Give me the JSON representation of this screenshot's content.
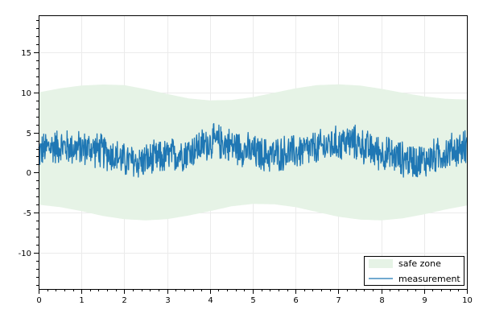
{
  "chart_data": {
    "type": "line",
    "title": "",
    "xlabel": "",
    "ylabel": "",
    "xlim": [
      0,
      10
    ],
    "ylim": [
      -14.5,
      19.5
    ],
    "x_ticks": [
      0,
      1,
      2,
      3,
      4,
      5,
      6,
      7,
      8,
      9,
      10
    ],
    "y_ticks": [
      -10,
      -5,
      0,
      5,
      10,
      15
    ],
    "grid": true,
    "legend_position": "bottom-right",
    "band": {
      "name": "safe zone",
      "color": "#e6f3e6",
      "upper": {
        "x": [
          0,
          0.5,
          1,
          1.5,
          2,
          2.5,
          3,
          3.5,
          4,
          4.5,
          5,
          5.5,
          6,
          6.5,
          7,
          7.5,
          8,
          8.5,
          9,
          9.5,
          10
        ],
        "y": [
          10.0,
          10.5,
          10.85,
          10.98,
          10.9,
          10.4,
          9.8,
          9.25,
          9.0,
          9.05,
          9.4,
          9.95,
          10.5,
          10.9,
          11.0,
          10.85,
          10.45,
          9.95,
          9.5,
          9.2,
          9.1
        ]
      },
      "lower": {
        "x": [
          0,
          0.5,
          1,
          1.5,
          2,
          2.5,
          3,
          3.5,
          4,
          4.5,
          5,
          5.5,
          6,
          6.5,
          7,
          7.5,
          8,
          8.5,
          9,
          9.5,
          10
        ],
        "y": [
          -4.0,
          -4.3,
          -4.8,
          -5.4,
          -5.8,
          -5.95,
          -5.8,
          -5.35,
          -4.8,
          -4.2,
          -3.9,
          -3.95,
          -4.3,
          -4.9,
          -5.5,
          -5.85,
          -5.95,
          -5.7,
          -5.2,
          -4.6,
          -4.1
        ]
      }
    },
    "series": [
      {
        "name": "measurement",
        "color": "#1f77b4",
        "x": [
          0,
          0.25,
          0.5,
          0.75,
          1,
          1.25,
          1.5,
          1.75,
          2,
          2.25,
          2.5,
          2.75,
          3,
          3.25,
          3.5,
          3.75,
          4,
          4.25,
          4.5,
          4.75,
          5,
          5.25,
          5.5,
          5.75,
          6,
          6.25,
          6.5,
          6.75,
          7,
          7.25,
          7.5,
          7.75,
          8,
          8.25,
          8.5,
          8.75,
          9,
          9.25,
          9.5,
          9.75,
          10
        ],
        "y": [
          2.5,
          3.2,
          3.3,
          3.1,
          3.0,
          3.0,
          2.6,
          2.2,
          1.5,
          1.3,
          1.5,
          1.7,
          2.0,
          2.3,
          2.6,
          3.2,
          3.8,
          3.8,
          3.4,
          3.0,
          2.5,
          2.2,
          2.2,
          2.5,
          2.5,
          2.8,
          3.0,
          3.4,
          3.6,
          3.9,
          3.5,
          2.8,
          2.5,
          2.1,
          1.7,
          1.5,
          1.5,
          2.0,
          2.5,
          2.9,
          3.2
        ],
        "noise_amplitude": 2.5
      }
    ]
  }
}
